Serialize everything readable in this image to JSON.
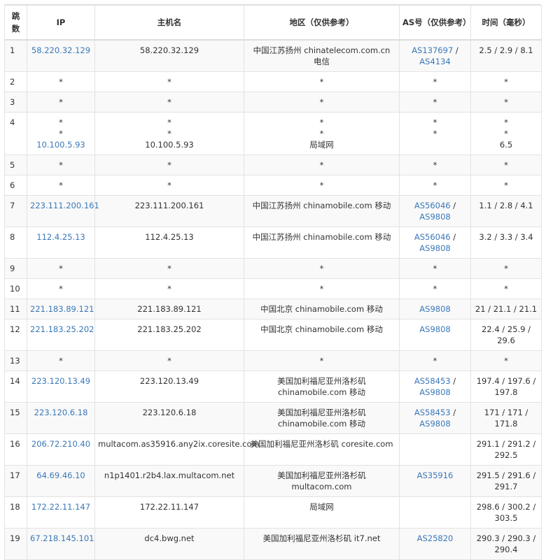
{
  "header": {
    "hop": "跳数",
    "ip": "IP",
    "host": "主机名",
    "region": "地区（仅供参考）",
    "as": "AS号（仅供参考）",
    "time": "时间（毫秒）"
  },
  "colors": {
    "link": "#3a78b8",
    "text": "#333333",
    "stripe": "#f9f9f9"
  },
  "rows": [
    {
      "hop": "1",
      "ip": [
        "58.220.32.129"
      ],
      "host": [
        "58.220.32.129"
      ],
      "region": [
        "中国江苏扬州 chinatelecom.com.cn 电信"
      ],
      "as": [
        "AS137697",
        "AS4134"
      ],
      "time": [
        "2.5 / 2.9 / 8.1"
      ]
    },
    {
      "hop": "2",
      "ip": [
        "*"
      ],
      "host": [
        "*"
      ],
      "region": [
        "*"
      ],
      "as": [
        "*"
      ],
      "time": [
        "*"
      ]
    },
    {
      "hop": "3",
      "ip": [
        "*"
      ],
      "host": [
        "*"
      ],
      "region": [
        "*"
      ],
      "as": [
        "*"
      ],
      "time": [
        "*"
      ]
    },
    {
      "hop": "4",
      "ip": [
        "*",
        "*",
        "10.100.5.93"
      ],
      "host": [
        "*",
        "*",
        "10.100.5.93"
      ],
      "region": [
        "*",
        "*",
        "局域网"
      ],
      "as": [
        "*",
        "*"
      ],
      "time": [
        "*",
        "*",
        "6.5"
      ]
    },
    {
      "hop": "5",
      "ip": [
        "*"
      ],
      "host": [
        "*"
      ],
      "region": [
        "*"
      ],
      "as": [
        "*"
      ],
      "time": [
        "*"
      ]
    },
    {
      "hop": "6",
      "ip": [
        "*"
      ],
      "host": [
        "*"
      ],
      "region": [
        "*"
      ],
      "as": [
        "*"
      ],
      "time": [
        "*"
      ]
    },
    {
      "hop": "7",
      "ip": [
        "223.111.200.161"
      ],
      "host": [
        "223.111.200.161"
      ],
      "region": [
        "中国江苏扬州 chinamobile.com 移动"
      ],
      "as": [
        "AS56046",
        "AS9808"
      ],
      "time": [
        "1.1 / 2.8 / 4.1"
      ]
    },
    {
      "hop": "8",
      "ip": [
        "112.4.25.13"
      ],
      "host": [
        "112.4.25.13"
      ],
      "region": [
        "中国江苏扬州 chinamobile.com 移动"
      ],
      "as": [
        "AS56046",
        "AS9808"
      ],
      "time": [
        "3.2 / 3.3 / 3.4"
      ]
    },
    {
      "hop": "9",
      "ip": [
        "*"
      ],
      "host": [
        "*"
      ],
      "region": [
        "*"
      ],
      "as": [
        "*"
      ],
      "time": [
        "*"
      ]
    },
    {
      "hop": "10",
      "ip": [
        "*"
      ],
      "host": [
        "*"
      ],
      "region": [
        "*"
      ],
      "as": [
        "*"
      ],
      "time": [
        "*"
      ]
    },
    {
      "hop": "11",
      "ip": [
        "221.183.89.121"
      ],
      "host": [
        "221.183.89.121"
      ],
      "region": [
        "中国北京 chinamobile.com 移动"
      ],
      "as": [
        "AS9808"
      ],
      "time": [
        "21 / 21.1 / 21.1"
      ]
    },
    {
      "hop": "12",
      "ip": [
        "221.183.25.202"
      ],
      "host": [
        "221.183.25.202"
      ],
      "region": [
        "中国北京 chinamobile.com 移动"
      ],
      "as": [
        "AS9808"
      ],
      "time": [
        "22.4 / 25.9 / 29.6"
      ]
    },
    {
      "hop": "13",
      "ip": [
        "*"
      ],
      "host": [
        "*"
      ],
      "region": [
        "*"
      ],
      "as": [
        "*"
      ],
      "time": [
        "*"
      ]
    },
    {
      "hop": "14",
      "ip": [
        "223.120.13.49"
      ],
      "host": [
        "223.120.13.49"
      ],
      "region": [
        "美国加利福尼亚州洛杉矶 chinamobile.com 移动"
      ],
      "as": [
        "AS58453",
        "AS9808"
      ],
      "time": [
        "197.4 / 197.6 / 197.8"
      ]
    },
    {
      "hop": "15",
      "ip": [
        "223.120.6.18"
      ],
      "host": [
        "223.120.6.18"
      ],
      "region": [
        "美国加利福尼亚州洛杉矶 chinamobile.com 移动"
      ],
      "as": [
        "AS58453",
        "AS9808"
      ],
      "time": [
        "171 / 171 / 171.8"
      ]
    },
    {
      "hop": "16",
      "ip": [
        "206.72.210.40"
      ],
      "host": [
        "multacom.as35916.any2ix.coresite.com"
      ],
      "region": [
        "美国加利福尼亚州洛杉矶 coresite.com"
      ],
      "as": [],
      "time": [
        "291.1 / 291.2 / 292.5"
      ]
    },
    {
      "hop": "17",
      "ip": [
        "64.69.46.10"
      ],
      "host": [
        "n1p1401.r2b4.lax.multacom.net"
      ],
      "region": [
        "美国加利福尼亚州洛杉矶 multacom.com"
      ],
      "as": [
        "AS35916"
      ],
      "time": [
        "291.5 / 291.6 / 291.7"
      ]
    },
    {
      "hop": "18",
      "ip": [
        "172.22.11.147"
      ],
      "host": [
        "172.22.11.147"
      ],
      "region": [
        "局域网"
      ],
      "as": [],
      "time": [
        "298.6 / 300.2 / 303.5"
      ]
    },
    {
      "hop": "19",
      "ip": [
        "67.218.145.101"
      ],
      "host": [
        "dc4.bwg.net"
      ],
      "region": [
        "美国加利福尼亚州洛杉矶 it7.net"
      ],
      "as": [
        "AS25820"
      ],
      "time": [
        "290.3 / 290.3 / 290.4"
      ]
    }
  ]
}
